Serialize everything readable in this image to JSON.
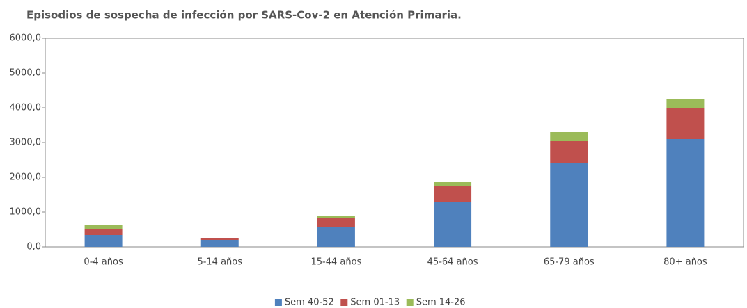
{
  "chart_data": {
    "type": "stacked_bar",
    "title": "Episodios de sospecha de infección por SARS-Cov-2 en Atención Primaria.",
    "categories": [
      "0-4 años",
      "5-14 años",
      "15-44 años",
      "45-64 años",
      "65-79 años",
      "80+ años"
    ],
    "series": [
      {
        "name": "Sem 40-52",
        "color": "#4f81bd",
        "values": [
          340,
          200,
          580,
          1300,
          2400,
          3100
        ]
      },
      {
        "name": "Sem 01-13",
        "color": "#c0504d",
        "values": [
          180,
          40,
          260,
          440,
          640,
          900
        ]
      },
      {
        "name": "Sem 14-26",
        "color": "#9bbb59",
        "values": [
          100,
          20,
          60,
          120,
          260,
          240
        ]
      }
    ],
    "ylim": [
      0,
      6000
    ],
    "yticks": [
      {
        "value": 0,
        "label": "0,0"
      },
      {
        "value": 1000,
        "label": "1000,0"
      },
      {
        "value": 2000,
        "label": "2000,0"
      },
      {
        "value": 3000,
        "label": "3000,0"
      },
      {
        "value": 4000,
        "label": "4000,0"
      },
      {
        "value": 5000,
        "label": "5000,0"
      },
      {
        "value": 6000,
        "label": "6000,0"
      }
    ],
    "legend": "bottom"
  }
}
